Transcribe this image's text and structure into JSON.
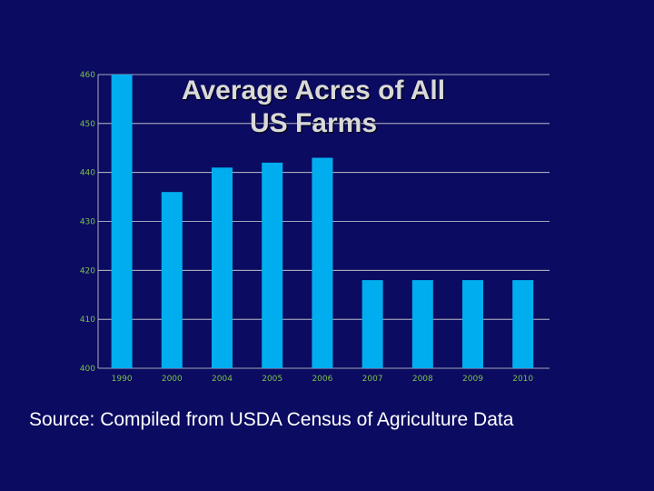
{
  "chart_data": {
    "type": "bar",
    "title_line1": "Average Acres of All",
    "title_line2": "US Farms",
    "categories": [
      "1990",
      "2000",
      "2004",
      "2005",
      "2006",
      "2007",
      "2008",
      "2009",
      "2010"
    ],
    "values": [
      460,
      436,
      441,
      442,
      443,
      418,
      418,
      418,
      418
    ],
    "y_ticks": [
      "400",
      "410",
      "420",
      "430",
      "440",
      "450",
      "460"
    ],
    "ylim": [
      400,
      460
    ],
    "xlabel": "",
    "ylabel": "",
    "grid": true,
    "legend": "none",
    "colors": {
      "bar": "#00aeef",
      "gridline": "#d9d9d9",
      "tick_label": "#7cc04b",
      "background": "#0b0b61"
    }
  },
  "source_note": "Source: Compiled from USDA Census of Agriculture Data"
}
